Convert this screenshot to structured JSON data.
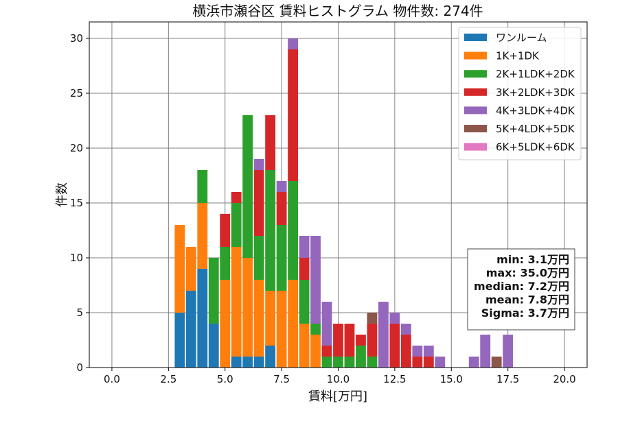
{
  "chart_data": {
    "type": "bar",
    "stacked": true,
    "title": "横浜市瀬谷区 賃料ヒストグラム 物件数: 274件",
    "xlabel": "賃料[万円]",
    "ylabel": "件数",
    "xlim": [
      -1.0,
      21.0
    ],
    "ylim": [
      0,
      31.5
    ],
    "xticks": [
      0.0,
      2.5,
      5.0,
      7.5,
      10.0,
      12.5,
      15.0,
      17.5,
      20.0
    ],
    "xtick_labels": [
      "0.0",
      "2.5",
      "5.0",
      "7.5",
      "10.0",
      "12.5",
      "15.0",
      "17.5",
      "20.0"
    ],
    "yticks": [
      0,
      5,
      10,
      15,
      20,
      25,
      30
    ],
    "ytick_labels": [
      "0",
      "5",
      "10",
      "15",
      "20",
      "25",
      "30"
    ],
    "grid": true,
    "legend_position": "top-right",
    "bin_width": 0.5,
    "bins": [
      3.0,
      3.5,
      4.0,
      4.5,
      5.0,
      5.5,
      6.0,
      6.5,
      7.0,
      7.5,
      8.0,
      8.5,
      9.0,
      9.5,
      10.0,
      10.5,
      11.0,
      11.5,
      12.0,
      12.5,
      13.0,
      13.5,
      14.0,
      14.5,
      15.0,
      15.5,
      16.0,
      16.5,
      17.0,
      17.5
    ],
    "series": [
      {
        "name": "ワンルーム",
        "color": "#1f77b4",
        "values": [
          5,
          7,
          9,
          4,
          0,
          1,
          1,
          1,
          2,
          0,
          0,
          0,
          0,
          0,
          0,
          0,
          0,
          0,
          0,
          0,
          0,
          0,
          0,
          0,
          0,
          0,
          0,
          0,
          0,
          0
        ]
      },
      {
        "name": "1K+1DK",
        "color": "#ff7f0e",
        "values": [
          8,
          4,
          6,
          0,
          8,
          10,
          9,
          7,
          5,
          7,
          8,
          4,
          3,
          0,
          0,
          0,
          0,
          0,
          0,
          0,
          0,
          0,
          0,
          0,
          0,
          0,
          0,
          0,
          0,
          0
        ]
      },
      {
        "name": "2K+1LDK+2DK",
        "color": "#2ca02c",
        "values": [
          0,
          0,
          3,
          6,
          3,
          4,
          13,
          4,
          11,
          6,
          9,
          4,
          1,
          1,
          1,
          1,
          2,
          1,
          0,
          0,
          0,
          0,
          0,
          0,
          0,
          0,
          0,
          0,
          0,
          0
        ]
      },
      {
        "name": "3K+2LDK+3DK",
        "color": "#d62728",
        "values": [
          0,
          0,
          0,
          0,
          3,
          1,
          0,
          6,
          5,
          3,
          12,
          2,
          0,
          1,
          3,
          3,
          1,
          3,
          0,
          4,
          3,
          1,
          1,
          0,
          0,
          0,
          0,
          0,
          0,
          0
        ]
      },
      {
        "name": "4K+3LDK+4DK",
        "color": "#9467bd",
        "values": [
          0,
          0,
          0,
          0,
          0,
          0,
          0,
          1,
          0,
          1,
          1,
          2,
          8,
          4,
          0,
          0,
          0,
          0,
          6,
          1,
          1,
          1,
          1,
          1,
          0,
          0,
          1,
          3,
          0,
          3
        ]
      },
      {
        "name": "5K+4LDK+5DK",
        "color": "#8c564b",
        "values": [
          0,
          0,
          0,
          0,
          0,
          0,
          0,
          0,
          0,
          0,
          0,
          0,
          0,
          0,
          0,
          0,
          0,
          1,
          0,
          0,
          0,
          0,
          0,
          0,
          0,
          0,
          0,
          0,
          1,
          0
        ]
      },
      {
        "name": "6K+5LDK+6DK",
        "color": "#e377c2",
        "values": [
          0,
          0,
          0,
          0,
          0,
          0,
          0,
          0,
          0,
          0,
          0,
          0,
          0,
          0,
          0,
          0,
          0,
          0,
          0,
          0,
          0,
          0,
          0,
          0,
          0,
          0,
          0,
          0,
          0,
          0
        ]
      }
    ],
    "stats_box": [
      "min: 3.1万円",
      "max: 35.0万円",
      "median: 7.2万円",
      "mean: 7.8万円",
      "Sigma: 3.7万円"
    ]
  }
}
